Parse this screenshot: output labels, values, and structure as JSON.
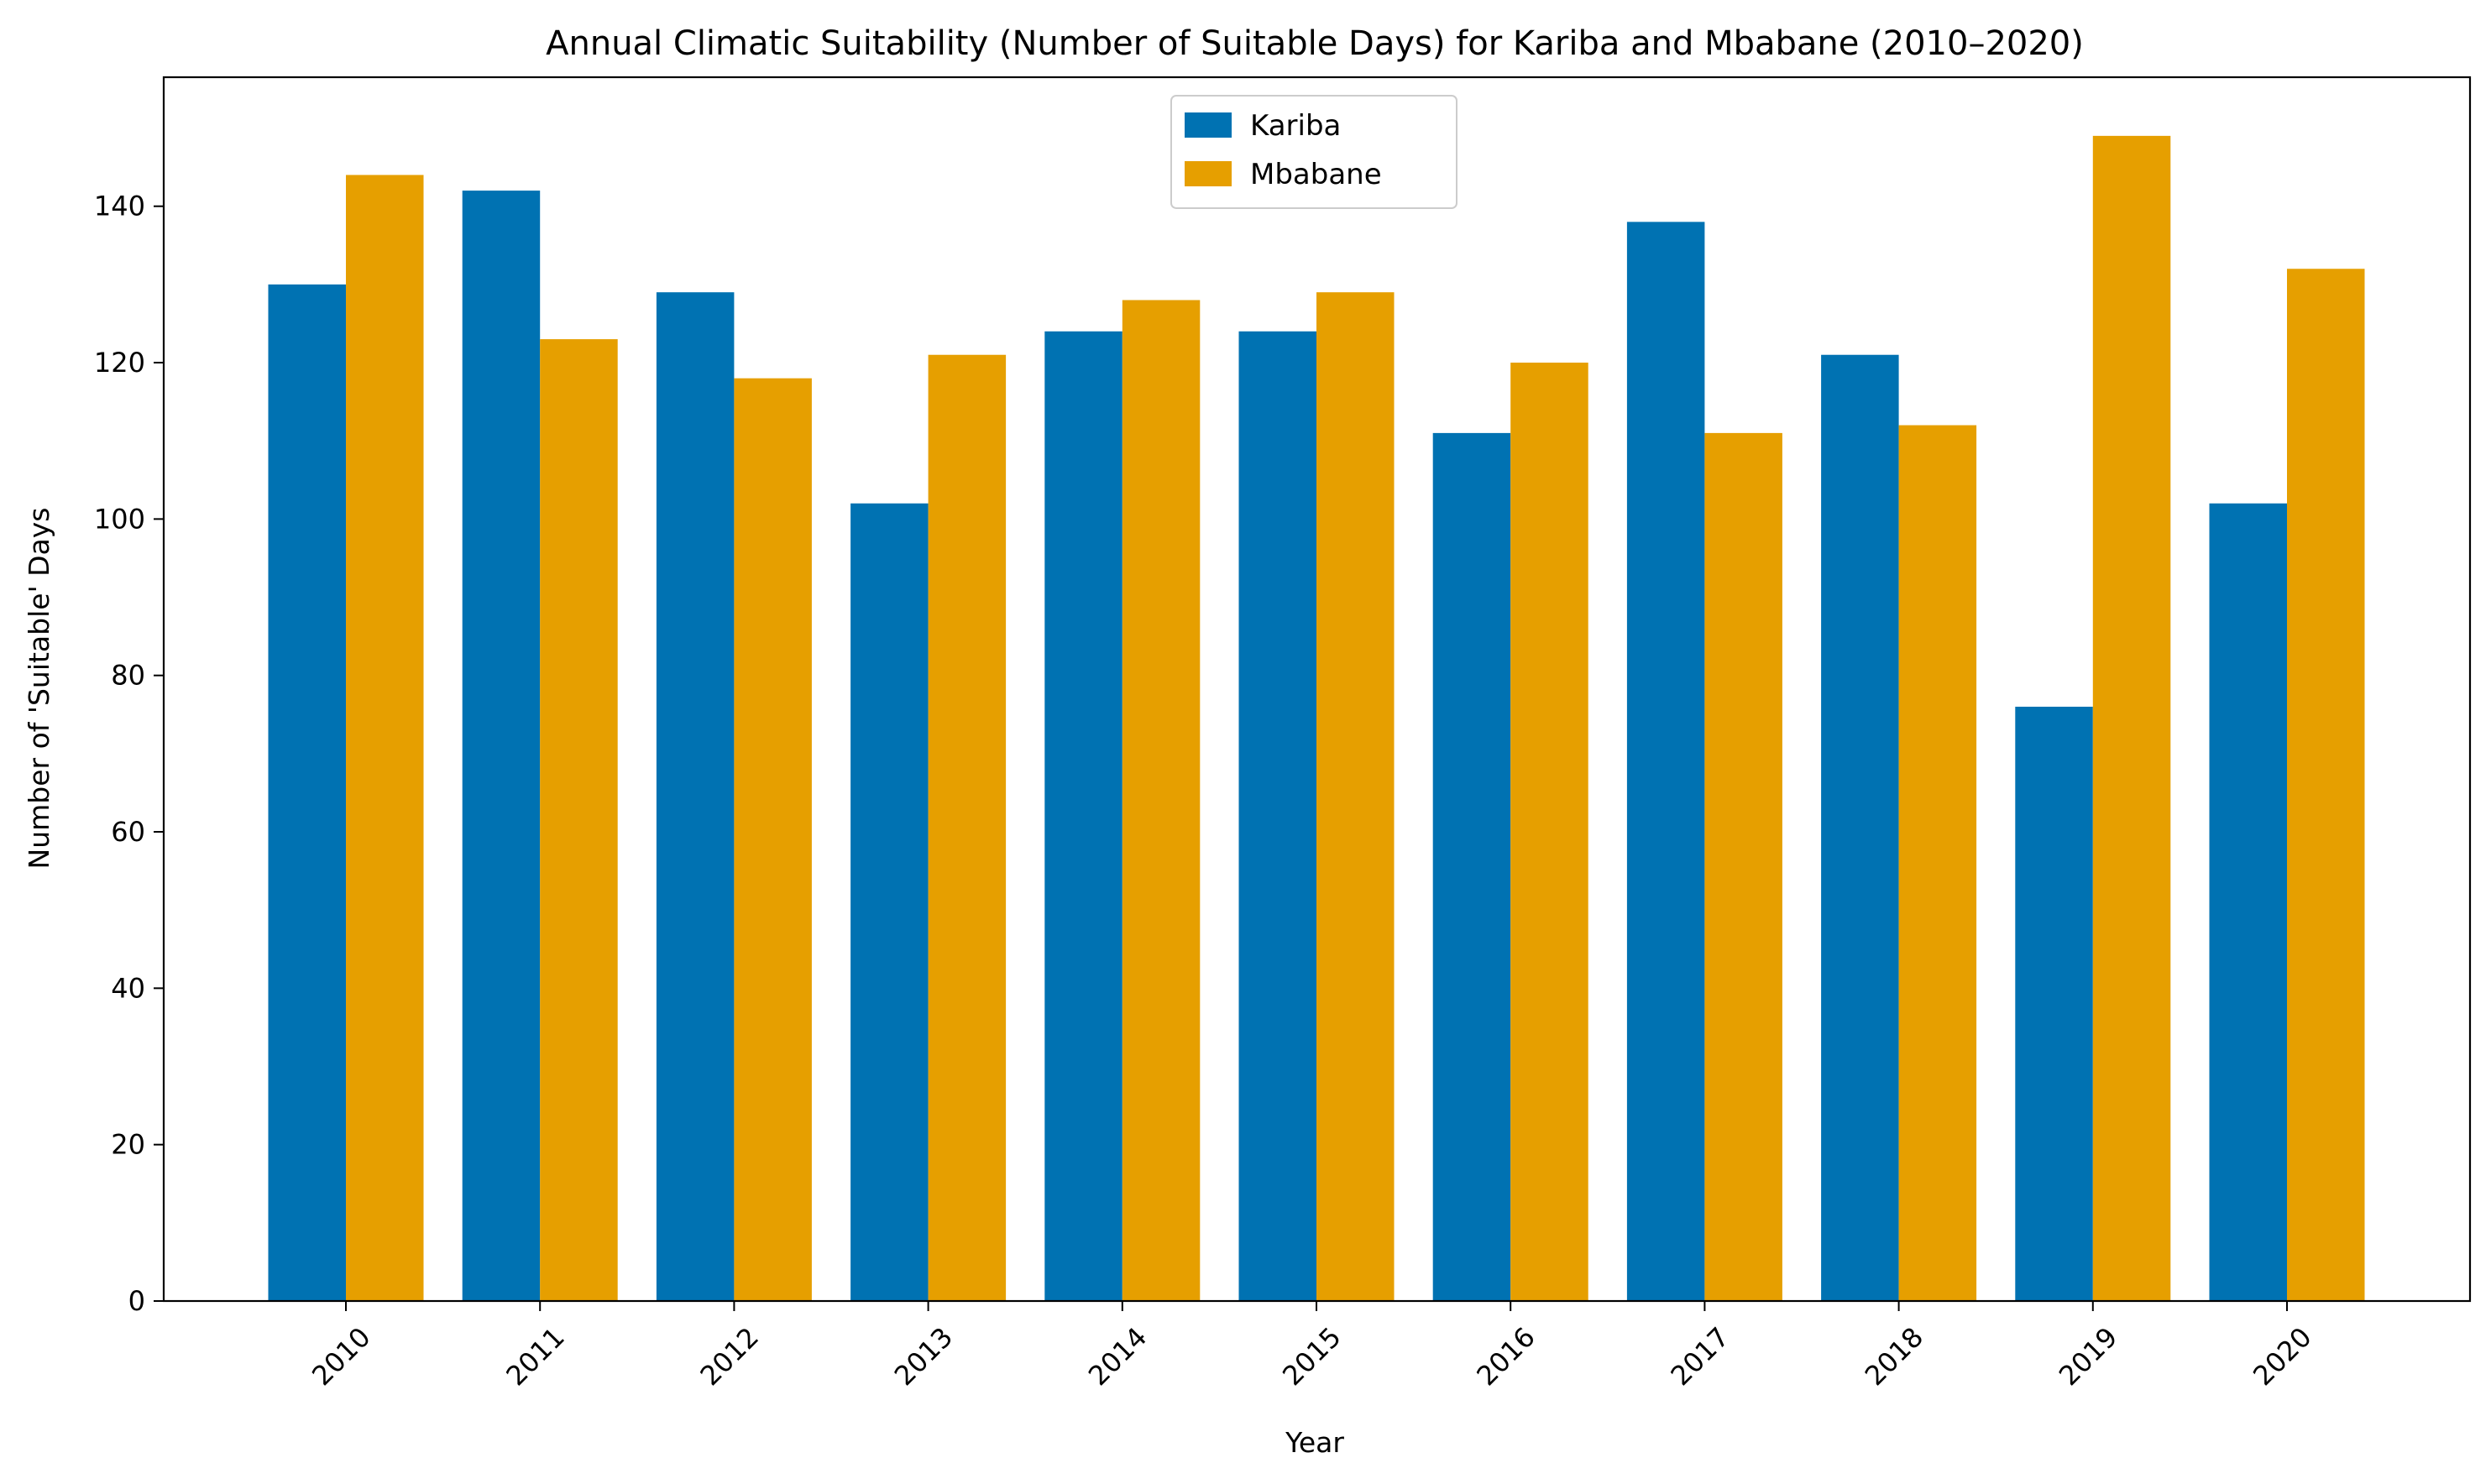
{
  "chart_data": {
    "type": "bar",
    "title": "Annual Climatic Suitability (Number of Suitable Days) for Kariba and Mbabane (2010–2020)",
    "xlabel": "Year",
    "ylabel": "Number of 'Suitable' Days",
    "categories": [
      "2010",
      "2011",
      "2012",
      "2013",
      "2014",
      "2015",
      "2016",
      "2017",
      "2018",
      "2019",
      "2020"
    ],
    "series": [
      {
        "name": "Kariba",
        "color": "#0072b2",
        "values": [
          130,
          142,
          129,
          102,
          124,
          124,
          111,
          138,
          121,
          76,
          102
        ]
      },
      {
        "name": "Mbabane",
        "color": "#e69f00",
        "values": [
          144,
          123,
          118,
          121,
          128,
          129,
          120,
          111,
          112,
          149,
          132
        ]
      }
    ],
    "ylim": [
      0,
      156.5
    ],
    "yticks": [
      "0",
      "20",
      "40",
      "60",
      "80",
      "100",
      "120",
      "140"
    ],
    "grid": false,
    "legend_position": "top-center",
    "xtick_rotation": 45
  }
}
